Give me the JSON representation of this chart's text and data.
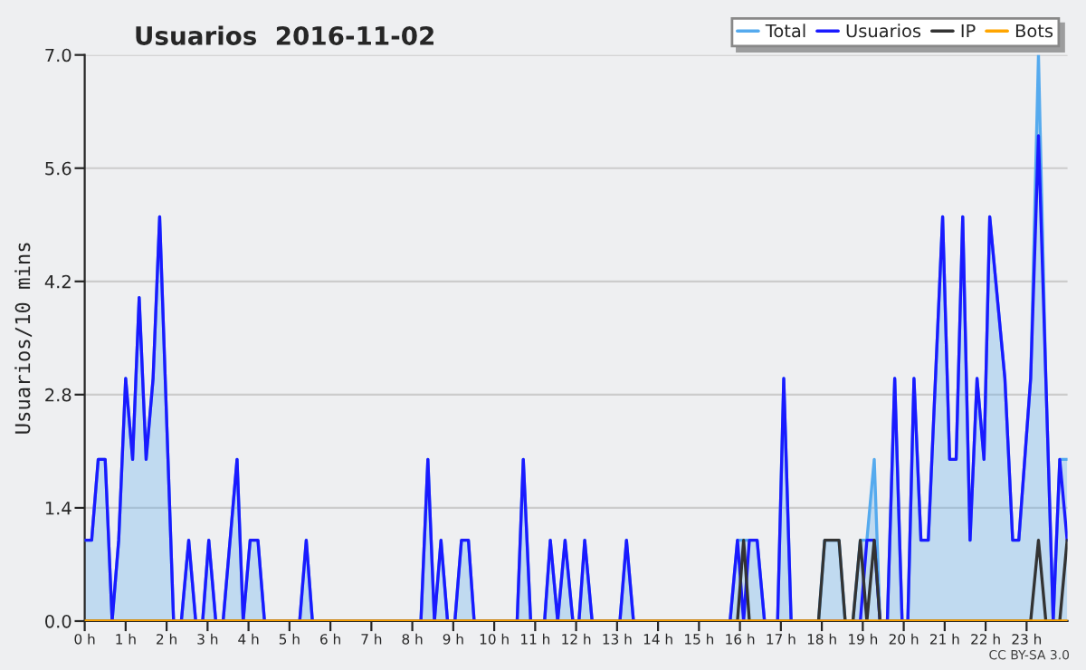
{
  "chart_data": {
    "type": "line",
    "title": "Usuarios  2016-11-02",
    "ylabel": "Usuarios/10 mins",
    "annotations": [
      "CC BY-SA 3.0"
    ],
    "xlim": [
      0,
      24
    ],
    "ylim": [
      0,
      7.0
    ],
    "xticks": [
      {
        "value": 0,
        "label": "0 h"
      },
      {
        "value": 1,
        "label": "1 h"
      },
      {
        "value": 2,
        "label": "2 h"
      },
      {
        "value": 3,
        "label": "3 h"
      },
      {
        "value": 4,
        "label": "4 h"
      },
      {
        "value": 5,
        "label": "5 h"
      },
      {
        "value": 6,
        "label": "6 h"
      },
      {
        "value": 7,
        "label": "7 h"
      },
      {
        "value": 8,
        "label": "8 h"
      },
      {
        "value": 9,
        "label": "9 h"
      },
      {
        "value": 10,
        "label": "10 h"
      },
      {
        "value": 11,
        "label": "11 h"
      },
      {
        "value": 12,
        "label": "12 h"
      },
      {
        "value": 13,
        "label": "13 h"
      },
      {
        "value": 14,
        "label": "14 h"
      },
      {
        "value": 15,
        "label": "15 h"
      },
      {
        "value": 16,
        "label": "16 h"
      },
      {
        "value": 17,
        "label": "17 h"
      },
      {
        "value": 18,
        "label": "18 h"
      },
      {
        "value": 19,
        "label": "19 h"
      },
      {
        "value": 20,
        "label": "20 h"
      },
      {
        "value": 21,
        "label": "21 h"
      },
      {
        "value": 22,
        "label": "22 h"
      },
      {
        "value": 23,
        "label": "23 h"
      }
    ],
    "yticks": [
      {
        "value": 0,
        "label": "0.0"
      },
      {
        "value": 1.4,
        "label": "1.4"
      },
      {
        "value": 2.8,
        "label": "2.8"
      },
      {
        "value": 4.2,
        "label": "4.2"
      },
      {
        "value": 5.6,
        "label": "5.6"
      },
      {
        "value": 7.0,
        "label": "7.0"
      }
    ],
    "grid": "y",
    "legend": "top right",
    "series": [
      {
        "name": "Total",
        "type": "area",
        "color": "#55aaee",
        "x": [
          0,
          0.17,
          0.33,
          0.5,
          0.67,
          0.83,
          1.0,
          1.17,
          1.33,
          1.5,
          1.67,
          1.83,
          2.17,
          2.36,
          2.54,
          2.71,
          2.88,
          3.03,
          3.2,
          3.38,
          3.72,
          3.87,
          4.04,
          4.23,
          4.39,
          5.25,
          5.41,
          5.56,
          8.21,
          8.38,
          8.54,
          8.7,
          8.86,
          9.04,
          9.2,
          9.37,
          9.51,
          10.56,
          10.71,
          10.89,
          11.23,
          11.37,
          11.55,
          11.73,
          11.92,
          12.07,
          12.21,
          12.39,
          13.07,
          13.23,
          13.4,
          15.76,
          15.94,
          16.09,
          16.23,
          16.42,
          16.6,
          16.92,
          17.07,
          17.25,
          17.92,
          18.07,
          18.42,
          18.57,
          18.76,
          18.94,
          19.1,
          19.28,
          19.42,
          19.6,
          19.78,
          19.96,
          20.1,
          20.25,
          20.42,
          20.6,
          20.95,
          21.12,
          21.28,
          21.44,
          21.62,
          21.79,
          21.96,
          22.1,
          22.47,
          22.66,
          22.81,
          23.1,
          23.29,
          23.47,
          23.65,
          23.81,
          23.99
        ],
        "values": [
          1,
          1,
          2,
          2,
          0,
          1,
          3,
          2,
          4,
          2,
          3,
          5,
          0,
          0,
          1,
          0,
          0,
          1,
          0,
          0,
          2,
          0,
          1,
          1,
          0,
          0,
          1,
          0,
          0,
          2,
          0,
          1,
          0,
          0,
          1,
          1,
          0,
          0,
          2,
          0,
          0,
          1,
          0,
          1,
          0,
          0,
          1,
          0,
          0,
          1,
          0,
          0,
          1,
          1,
          1,
          1,
          0,
          0,
          3,
          0,
          0,
          1,
          1,
          0,
          0,
          1,
          1,
          2,
          0,
          0,
          3,
          0,
          0,
          3,
          1,
          1,
          5,
          2,
          2,
          5,
          1,
          3,
          2,
          5,
          3,
          1,
          1,
          3,
          7,
          3,
          0,
          2,
          2
        ]
      },
      {
        "name": "Usuarios",
        "color": "#1a1aff",
        "x": [
          0,
          0.17,
          0.33,
          0.5,
          0.67,
          0.83,
          1.0,
          1.17,
          1.33,
          1.5,
          1.67,
          1.83,
          2.17,
          2.36,
          2.54,
          2.71,
          2.88,
          3.03,
          3.2,
          3.38,
          3.72,
          3.87,
          4.04,
          4.23,
          4.39,
          5.25,
          5.41,
          5.56,
          8.21,
          8.38,
          8.54,
          8.7,
          8.86,
          9.04,
          9.2,
          9.37,
          9.51,
          10.56,
          10.71,
          10.89,
          11.23,
          11.37,
          11.55,
          11.73,
          11.92,
          12.07,
          12.21,
          12.39,
          13.07,
          13.23,
          13.4,
          15.76,
          15.94,
          16.09,
          16.23,
          16.42,
          16.6,
          16.92,
          17.07,
          17.25,
          18.94,
          19.1,
          19.28,
          19.42,
          19.6,
          19.78,
          19.96,
          20.1,
          20.25,
          20.42,
          20.6,
          20.95,
          21.12,
          21.28,
          21.44,
          21.62,
          21.79,
          21.96,
          22.1,
          22.47,
          22.66,
          22.81,
          23.1,
          23.29,
          23.65,
          23.81,
          23.99
        ],
        "values": [
          1,
          1,
          2,
          2,
          0,
          1,
          3,
          2,
          4,
          2,
          3,
          5,
          0,
          0,
          1,
          0,
          0,
          1,
          0,
          0,
          2,
          0,
          1,
          1,
          0,
          0,
          1,
          0,
          0,
          2,
          0,
          1,
          0,
          0,
          1,
          1,
          0,
          0,
          2,
          0,
          0,
          1,
          0,
          1,
          0,
          0,
          1,
          0,
          0,
          1,
          0,
          0,
          1,
          0,
          1,
          1,
          0,
          0,
          3,
          0,
          0,
          1,
          1,
          0,
          0,
          3,
          0,
          0,
          3,
          1,
          1,
          5,
          2,
          2,
          5,
          1,
          3,
          2,
          5,
          3,
          1,
          1,
          3,
          6,
          0,
          2,
          1
        ]
      },
      {
        "name": "IP",
        "color": "#333333",
        "x": [
          0,
          15.94,
          16.09,
          16.23,
          17.92,
          18.07,
          18.42,
          18.57,
          18.76,
          18.94,
          19.1,
          19.28,
          19.42,
          23.1,
          23.29,
          23.47,
          23.81,
          23.99
        ],
        "values": [
          0,
          0,
          1,
          0,
          0,
          1,
          1,
          0,
          0,
          1,
          0,
          1,
          0,
          0,
          1,
          0,
          0,
          1
        ]
      },
      {
        "name": "Bots",
        "color": "#ffa500",
        "x": [
          0,
          23.99
        ],
        "values": [
          0,
          0
        ]
      }
    ]
  }
}
